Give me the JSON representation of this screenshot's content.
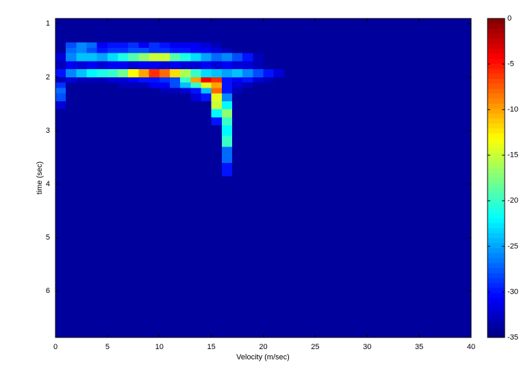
{
  "chart_data": {
    "type": "heatmap",
    "xlabel": "Velocity (m/sec)",
    "ylabel": "time (sec)",
    "xlim": [
      0,
      40
    ],
    "xticks": [
      0,
      5,
      10,
      15,
      20,
      25,
      30,
      35,
      40
    ],
    "ylim": [
      0.9,
      6.87
    ],
    "yticks": [
      1,
      2,
      3,
      4,
      5,
      6
    ],
    "y_reversed": true,
    "clim": [
      -35,
      0
    ],
    "colorbar_ticks": [
      0,
      -5,
      -10,
      -15,
      -20,
      -25,
      -30,
      -35
    ],
    "colormap": "jet",
    "xbins": [
      0,
      1,
      2,
      3,
      4,
      5,
      6,
      7,
      8,
      9,
      10,
      11,
      12,
      13,
      14,
      15,
      16,
      17,
      18,
      19,
      20,
      21,
      22,
      40
    ],
    "ybins": [
      0.9,
      1.35,
      1.45,
      1.55,
      1.7,
      1.85,
      2.0,
      2.1,
      2.2,
      2.3,
      2.45,
      2.6,
      2.75,
      2.9,
      3.1,
      3.3,
      3.6,
      3.85,
      6.87
    ],
    "z": [
      [
        -34,
        -34,
        -34,
        -34,
        -34,
        -34,
        -34,
        -34,
        -34,
        -34,
        -34,
        -34,
        -34,
        -34,
        -34,
        -34,
        -34,
        -34,
        -34,
        -34,
        -34,
        -34,
        -34
      ],
      [
        -34,
        -28,
        -26,
        -27,
        -31,
        -30,
        -30,
        -29,
        -31,
        -29,
        -30,
        -31,
        -31,
        -31,
        -32,
        -33,
        -34,
        -34,
        -34,
        -34,
        -34,
        -34,
        -34
      ],
      [
        -34,
        -27,
        -26,
        -28,
        -30,
        -29,
        -29,
        -28,
        -28,
        -29,
        -29,
        -30,
        -30,
        -31,
        -31,
        -32,
        -33,
        -34,
        -34,
        -34,
        -34,
        -34,
        -34
      ],
      [
        -32,
        -26,
        -24,
        -24,
        -25,
        -23,
        -21,
        -19,
        -17,
        -15,
        -15,
        -19,
        -21,
        -23,
        -25,
        -27,
        -26,
        -28,
        -30,
        -33,
        -34,
        -34,
        -34
      ],
      [
        -33,
        -31,
        -32,
        -31,
        -32,
        -31,
        -31,
        -32,
        -31,
        -31,
        -32,
        -31,
        -32,
        -32,
        -31,
        -32,
        -31,
        -32,
        -32,
        -33,
        -34,
        -34,
        -34
      ],
      [
        -30,
        -26,
        -24,
        -22,
        -21,
        -20,
        -18,
        -13,
        -10,
        -6,
        -8,
        -12,
        -16,
        -20,
        -23,
        -24,
        -25,
        -24,
        -26,
        -28,
        -30,
        -32,
        -34
      ],
      [
        -33,
        -32,
        -33,
        -33,
        -33,
        -32,
        -32,
        -31,
        -30,
        -30,
        -29,
        -28,
        -20,
        -10,
        -4,
        -6,
        -30,
        -31,
        -30,
        -32,
        -33,
        -34,
        -34
      ],
      [
        -29,
        -34,
        -34,
        -34,
        -34,
        -34,
        -33,
        -33,
        -33,
        -31,
        -31,
        -28,
        -24,
        -20,
        -14,
        -10,
        -30,
        -32,
        -33,
        -34,
        -34,
        -34,
        -34
      ],
      [
        -27,
        -34,
        -34,
        -34,
        -34,
        -34,
        -34,
        -34,
        -34,
        -34,
        -33,
        -33,
        -32,
        -30,
        -24,
        -8,
        -30,
        -33,
        -34,
        -34,
        -34,
        -34,
        -34
      ],
      [
        -28,
        -34,
        -34,
        -34,
        -34,
        -34,
        -34,
        -34,
        -34,
        -34,
        -34,
        -34,
        -34,
        -32,
        -30,
        -14,
        -26,
        -34,
        -34,
        -34,
        -34,
        -34,
        -34
      ],
      [
        -32,
        -34,
        -34,
        -34,
        -34,
        -34,
        -34,
        -34,
        -34,
        -34,
        -34,
        -34,
        -34,
        -34,
        -34,
        -15,
        -22,
        -34,
        -34,
        -34,
        -34,
        -34,
        -34
      ],
      [
        -34,
        -34,
        -34,
        -34,
        -34,
        -34,
        -34,
        -34,
        -34,
        -34,
        -34,
        -34,
        -34,
        -34,
        -34,
        -22,
        -17,
        -34,
        -34,
        -34,
        -34,
        -34,
        -34
      ],
      [
        -34,
        -34,
        -34,
        -34,
        -34,
        -34,
        -34,
        -34,
        -34,
        -34,
        -34,
        -34,
        -34,
        -34,
        -34,
        -30,
        -20,
        -34,
        -34,
        -34,
        -34,
        -34,
        -34
      ],
      [
        -34,
        -34,
        -34,
        -34,
        -34,
        -34,
        -34,
        -34,
        -34,
        -34,
        -34,
        -34,
        -34,
        -34,
        -34,
        -34,
        -22,
        -34,
        -34,
        -34,
        -34,
        -34,
        -34
      ],
      [
        -34,
        -34,
        -34,
        -34,
        -34,
        -34,
        -34,
        -34,
        -34,
        -34,
        -34,
        -34,
        -34,
        -34,
        -34,
        -34,
        -20,
        -34,
        -34,
        -34,
        -34,
        -34,
        -34
      ],
      [
        -34,
        -34,
        -34,
        -34,
        -34,
        -34,
        -34,
        -34,
        -34,
        -34,
        -34,
        -34,
        -34,
        -34,
        -34,
        -34,
        -27,
        -34,
        -34,
        -34,
        -34,
        -34,
        -34
      ],
      [
        -34,
        -34,
        -34,
        -34,
        -34,
        -34,
        -34,
        -34,
        -34,
        -34,
        -34,
        -34,
        -34,
        -34,
        -34,
        -34,
        -30,
        -34,
        -34,
        -34,
        -34,
        -34,
        -34
      ],
      [
        -34,
        -34,
        -34,
        -34,
        -34,
        -34,
        -34,
        -34,
        -34,
        -34,
        -34,
        -34,
        -34,
        -34,
        -34,
        -34,
        -34,
        -34,
        -34,
        -34,
        -34,
        -34,
        -34
      ]
    ]
  }
}
